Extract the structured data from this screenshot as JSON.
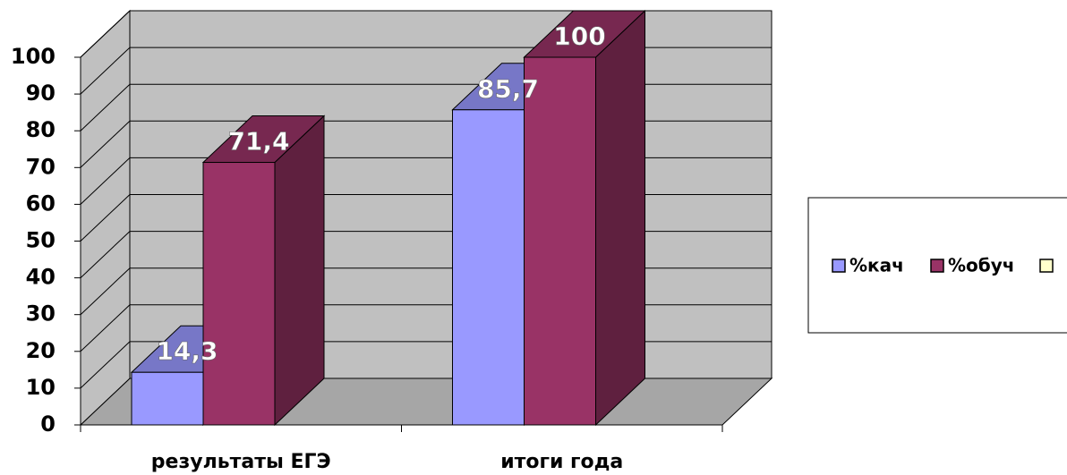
{
  "chart_data": {
    "type": "bar3d",
    "categories": [
      "результаты ЕГЭ",
      "итоги года"
    ],
    "series": [
      {
        "name": "%кач",
        "color": "#9999ff",
        "values": [
          14.3,
          85.7
        ],
        "value_labels": [
          "14,3",
          "85,7"
        ]
      },
      {
        "name": "%обуч",
        "color": "#993366",
        "values": [
          71.4,
          100
        ],
        "value_labels": [
          "71,4",
          "100"
        ]
      }
    ],
    "ylim": [
      0,
      100
    ],
    "yticks": [
      0,
      10,
      20,
      30,
      40,
      50,
      60,
      70,
      80,
      90,
      100
    ],
    "grid": true,
    "legend": "right"
  }
}
